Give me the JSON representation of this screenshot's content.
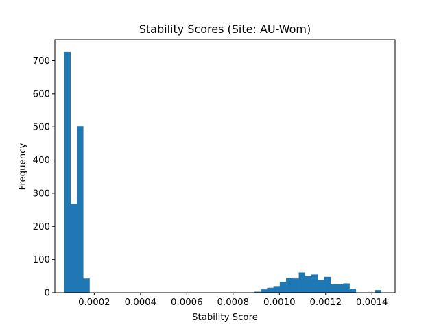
{
  "chart_data": {
    "type": "bar",
    "subtype": "histogram",
    "title": "Stability Scores (Site: AU-Wom)",
    "xlabel": "Stability Score",
    "ylabel": "Frequency",
    "color": "#1f77b4",
    "xlim": [
      3e-05,
      0.0015
    ],
    "ylim": [
      0,
      763
    ],
    "xticks": [
      0.0002,
      0.0004,
      0.0006,
      0.0008,
      0.001,
      0.0012,
      0.0014
    ],
    "xtick_labels": [
      "0.0002",
      "0.0004",
      "0.0006",
      "0.0008",
      "0.0010",
      "0.0012",
      "0.0014"
    ],
    "yticks": [
      0,
      100,
      200,
      300,
      400,
      500,
      600,
      700
    ],
    "ytick_labels": [
      "0",
      "100",
      "200",
      "300",
      "400",
      "500",
      "600",
      "700"
    ],
    "bin_start": 7e-05,
    "bin_width": 2.74e-05,
    "counts": [
      726,
      268,
      502,
      43,
      0,
      0,
      0,
      0,
      0,
      0,
      0,
      0,
      0,
      0,
      0,
      0,
      0,
      0,
      0,
      0,
      0,
      0,
      0,
      0,
      0,
      0,
      0,
      0,
      0,
      0,
      3,
      10,
      15,
      20,
      33,
      45,
      43,
      61,
      50,
      55,
      38,
      48,
      25,
      25,
      28,
      12,
      0,
      0,
      0,
      8
    ]
  }
}
